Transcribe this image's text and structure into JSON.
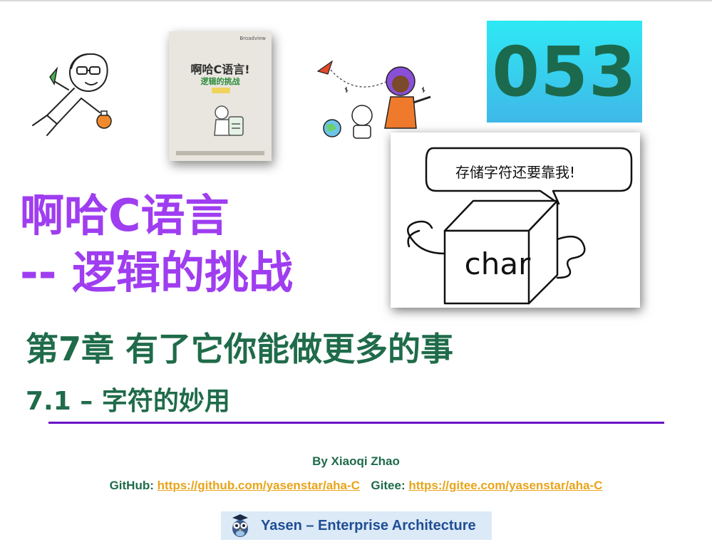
{
  "badge": {
    "number": "053"
  },
  "book": {
    "brand": "Broadview",
    "title": "啊哈C语言!",
    "subtitle": "逻辑的挑战"
  },
  "char_card": {
    "bubble": "存储字符还要靠我!",
    "box_label": "char"
  },
  "title": {
    "line1": "啊哈C语言",
    "line2": "-- 逻辑的挑战"
  },
  "chapter": {
    "title": "第7章 有了它你能做更多的事",
    "section": "7.1 – 字符的妙用"
  },
  "credits": {
    "author": "By Xiaoqi Zhao",
    "github_label": "GitHub:",
    "github_url": "https://github.com/yasenstar/aha-C",
    "gitee_label": "Gitee:",
    "gitee_url": "https://gitee.com/yasenstar/aha-C"
  },
  "footer": {
    "brand": "Yasen – Enterprise Architecture"
  },
  "colors": {
    "title_purple": "#9f3df0",
    "heading_green": "#1f6b4a",
    "link_orange": "#e8a41a",
    "rule_purple": "#6a12c6",
    "badge_cyan": "#2ee8f4",
    "footer_bg": "#dce9f6"
  }
}
